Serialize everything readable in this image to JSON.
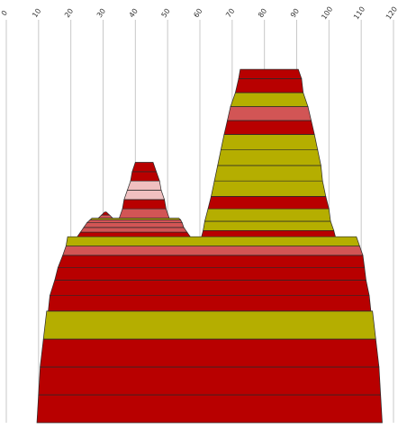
{
  "chart_data": {
    "type": "area",
    "title": "",
    "xlabel": "",
    "ylabel": "",
    "xlim": [
      0,
      120
    ],
    "xticks": [
      0,
      10,
      20,
      30,
      40,
      50,
      60,
      70,
      80,
      90,
      100,
      110,
      120
    ],
    "vertical_gridlines": true,
    "legend": "none",
    "colors": {
      "dark_red": "#b80000",
      "salmon": "#d25555",
      "olive": "#b5ae00",
      "pink": "#f0c0c0"
    },
    "structures": [
      {
        "name": "",
        "layers": [
          {
            "bottom": 0,
            "top": 9,
            "left": [
              9.5,
              10
            ],
            "right": [
              116.5,
              116
            ],
            "color": "dark_red"
          },
          {
            "bottom": 9,
            "top": 18,
            "left": [
              10,
              10.5
            ],
            "right": [
              116,
              115.5
            ],
            "color": "dark_red"
          },
          {
            "bottom": 18,
            "top": 27,
            "left": [
              10.5,
              11.5
            ],
            "right": [
              115.5,
              114.5
            ],
            "color": "dark_red"
          },
          {
            "bottom": 27,
            "top": 36,
            "left": [
              11.5,
              12.5
            ],
            "right": [
              114.5,
              113.5
            ],
            "color": "olive"
          },
          {
            "bottom": 36,
            "top": 41,
            "left": [
              13,
              13.5
            ],
            "right": [
              113,
              112.5
            ],
            "color": "dark_red"
          },
          {
            "bottom": 41,
            "top": 46,
            "left": [
              13.5,
              15
            ],
            "right": [
              112.5,
              111.5
            ],
            "color": "dark_red"
          },
          {
            "bottom": 46,
            "top": 50,
            "left": [
              15,
              16
            ],
            "right": [
              111.5,
              111
            ],
            "color": "dark_red"
          },
          {
            "bottom": 50,
            "top": 54,
            "left": [
              16,
              17.5
            ],
            "right": [
              111,
              110.5
            ],
            "color": "dark_red"
          },
          {
            "bottom": 54,
            "top": 57,
            "left": [
              17.5,
              18.5
            ],
            "right": [
              110.5,
              109.5
            ],
            "color": "salmon"
          },
          {
            "bottom": 57,
            "top": 60,
            "left": [
              18.5,
              19
            ],
            "right": [
              109.5,
              108.5
            ],
            "color": "olive"
          }
        ]
      },
      {
        "name": "",
        "layers": [
          {
            "bottom": 60,
            "top": 61.5,
            "left": [
              22,
              23
            ],
            "right": [
              57,
              56
            ],
            "color": "dark_red"
          },
          {
            "bottom": 61.5,
            "top": 63,
            "left": [
              23,
              24
            ],
            "right": [
              56,
              55
            ],
            "color": "salmon"
          },
          {
            "bottom": 63,
            "top": 64.5,
            "left": [
              24,
              25
            ],
            "right": [
              55,
              54.5
            ],
            "color": "salmon"
          },
          {
            "bottom": 64.5,
            "top": 65.5,
            "left": [
              25,
              26
            ],
            "right": [
              54.5,
              54
            ],
            "color": "salmon"
          },
          {
            "bottom": 65.5,
            "top": 66,
            "left": [
              26,
              26.5
            ],
            "right": [
              54,
              53.5
            ],
            "color": "olive"
          }
        ]
      },
      {
        "name": "",
        "layers": [
          {
            "bottom": 66,
            "top": 67,
            "left": [
              28.5,
              29.5
            ],
            "right": [
              33,
              32
            ],
            "color": "salmon"
          },
          {
            "bottom": 67,
            "top": 68,
            "left": [
              29.5,
              30.5
            ],
            "right": [
              32,
              31
            ],
            "color": "dark_red"
          }
        ]
      },
      {
        "name": "",
        "layers": [
          {
            "bottom": 66,
            "top": 69,
            "left": [
              35,
              36
            ],
            "right": [
              50.5,
              49.5
            ],
            "color": "salmon"
          },
          {
            "bottom": 69,
            "top": 72,
            "left": [
              36,
              36.5
            ],
            "right": [
              49.5,
              49
            ],
            "color": "dark_red"
          },
          {
            "bottom": 72,
            "top": 75,
            "left": [
              36.5,
              37.5
            ],
            "right": [
              49,
              48
            ],
            "color": "pink"
          },
          {
            "bottom": 75,
            "top": 78,
            "left": [
              37.5,
              38.5
            ],
            "right": [
              48,
              47.5
            ],
            "color": "pink"
          },
          {
            "bottom": 78,
            "top": 81,
            "left": [
              38.5,
              39
            ],
            "right": [
              47.5,
              46.5
            ],
            "color": "dark_red"
          },
          {
            "bottom": 81,
            "top": 84,
            "left": [
              39,
              40
            ],
            "right": [
              46.5,
              45.5
            ],
            "color": "dark_red"
          }
        ]
      },
      {
        "name": "",
        "layers": [
          {
            "bottom": 60,
            "top": 62,
            "left": [
              60.5,
              61
            ],
            "right": [
              102,
              101.5
            ],
            "color": "dark_red"
          },
          {
            "bottom": 62,
            "top": 65,
            "left": [
              61,
              61.5
            ],
            "right": [
              101.5,
              100.5
            ],
            "color": "olive"
          },
          {
            "bottom": 65,
            "top": 69,
            "left": [
              61.5,
              62.5
            ],
            "right": [
              100.5,
              100
            ],
            "color": "olive"
          },
          {
            "bottom": 69,
            "top": 73,
            "left": [
              62.5,
              63.5
            ],
            "right": [
              100,
              99
            ],
            "color": "dark_red"
          },
          {
            "bottom": 73,
            "top": 78,
            "left": [
              63.5,
              64.5
            ],
            "right": [
              99,
              98
            ],
            "color": "olive"
          },
          {
            "bottom": 78,
            "top": 83,
            "left": [
              64.5,
              65.5
            ],
            "right": [
              98,
              97.5
            ],
            "color": "olive"
          },
          {
            "bottom": 83,
            "top": 88,
            "left": [
              65.5,
              66.5
            ],
            "right": [
              97.5,
              96.5
            ],
            "color": "olive"
          },
          {
            "bottom": 88,
            "top": 93,
            "left": [
              66.5,
              67.5
            ],
            "right": [
              96.5,
              95.5
            ],
            "color": "olive"
          },
          {
            "bottom": 93,
            "top": 97.5,
            "left": [
              67.5,
              68.5
            ],
            "right": [
              95.5,
              94.5
            ],
            "color": "dark_red"
          },
          {
            "bottom": 97.5,
            "top": 102,
            "left": [
              68.5,
              69.5
            ],
            "right": [
              94.5,
              93.5
            ],
            "color": "salmon"
          },
          {
            "bottom": 102,
            "top": 106.5,
            "left": [
              69.5,
              71
            ],
            "right": [
              93.5,
              92
            ],
            "color": "olive"
          },
          {
            "bottom": 106.5,
            "top": 111,
            "left": [
              71,
              72
            ],
            "right": [
              92,
              91.5
            ],
            "color": "dark_red"
          },
          {
            "bottom": 111,
            "top": 114,
            "left": [
              72,
              72.5
            ],
            "right": [
              91.5,
              90.5
            ],
            "color": "dark_red"
          }
        ]
      }
    ]
  }
}
